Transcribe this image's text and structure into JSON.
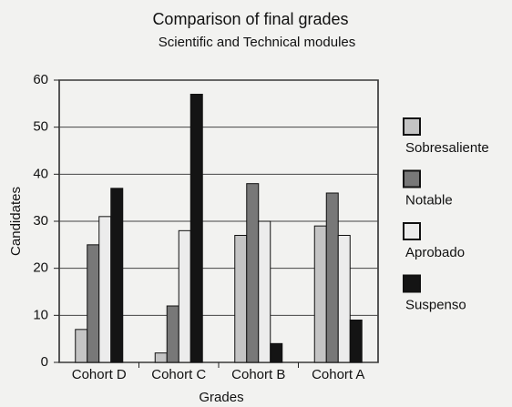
{
  "chart_data": {
    "type": "bar",
    "title": "Comparison of final grades",
    "subtitle": "Scientific and Technical modules",
    "x_label": "Grades",
    "y_label": "Candidates",
    "categories": [
      "Cohort D",
      "Cohort C",
      "Cohort B",
      "Cohort A"
    ],
    "series": [
      {
        "name": "Sobresaliente",
        "color": "#c4c4c4",
        "values": [
          7,
          2,
          27,
          29
        ]
      },
      {
        "name": "Notable",
        "color": "#787878",
        "values": [
          25,
          12,
          38,
          36
        ]
      },
      {
        "name": "Aprobado",
        "color": "#ececec",
        "values": [
          31,
          28,
          30,
          27
        ]
      },
      {
        "name": "Suspenso",
        "color": "#141414",
        "values": [
          37,
          57,
          4,
          9
        ]
      }
    ],
    "ylim": [
      0,
      60
    ],
    "yticks": [
      0,
      10,
      20,
      30,
      40,
      50,
      60
    ],
    "grid": true,
    "legend": "right"
  }
}
